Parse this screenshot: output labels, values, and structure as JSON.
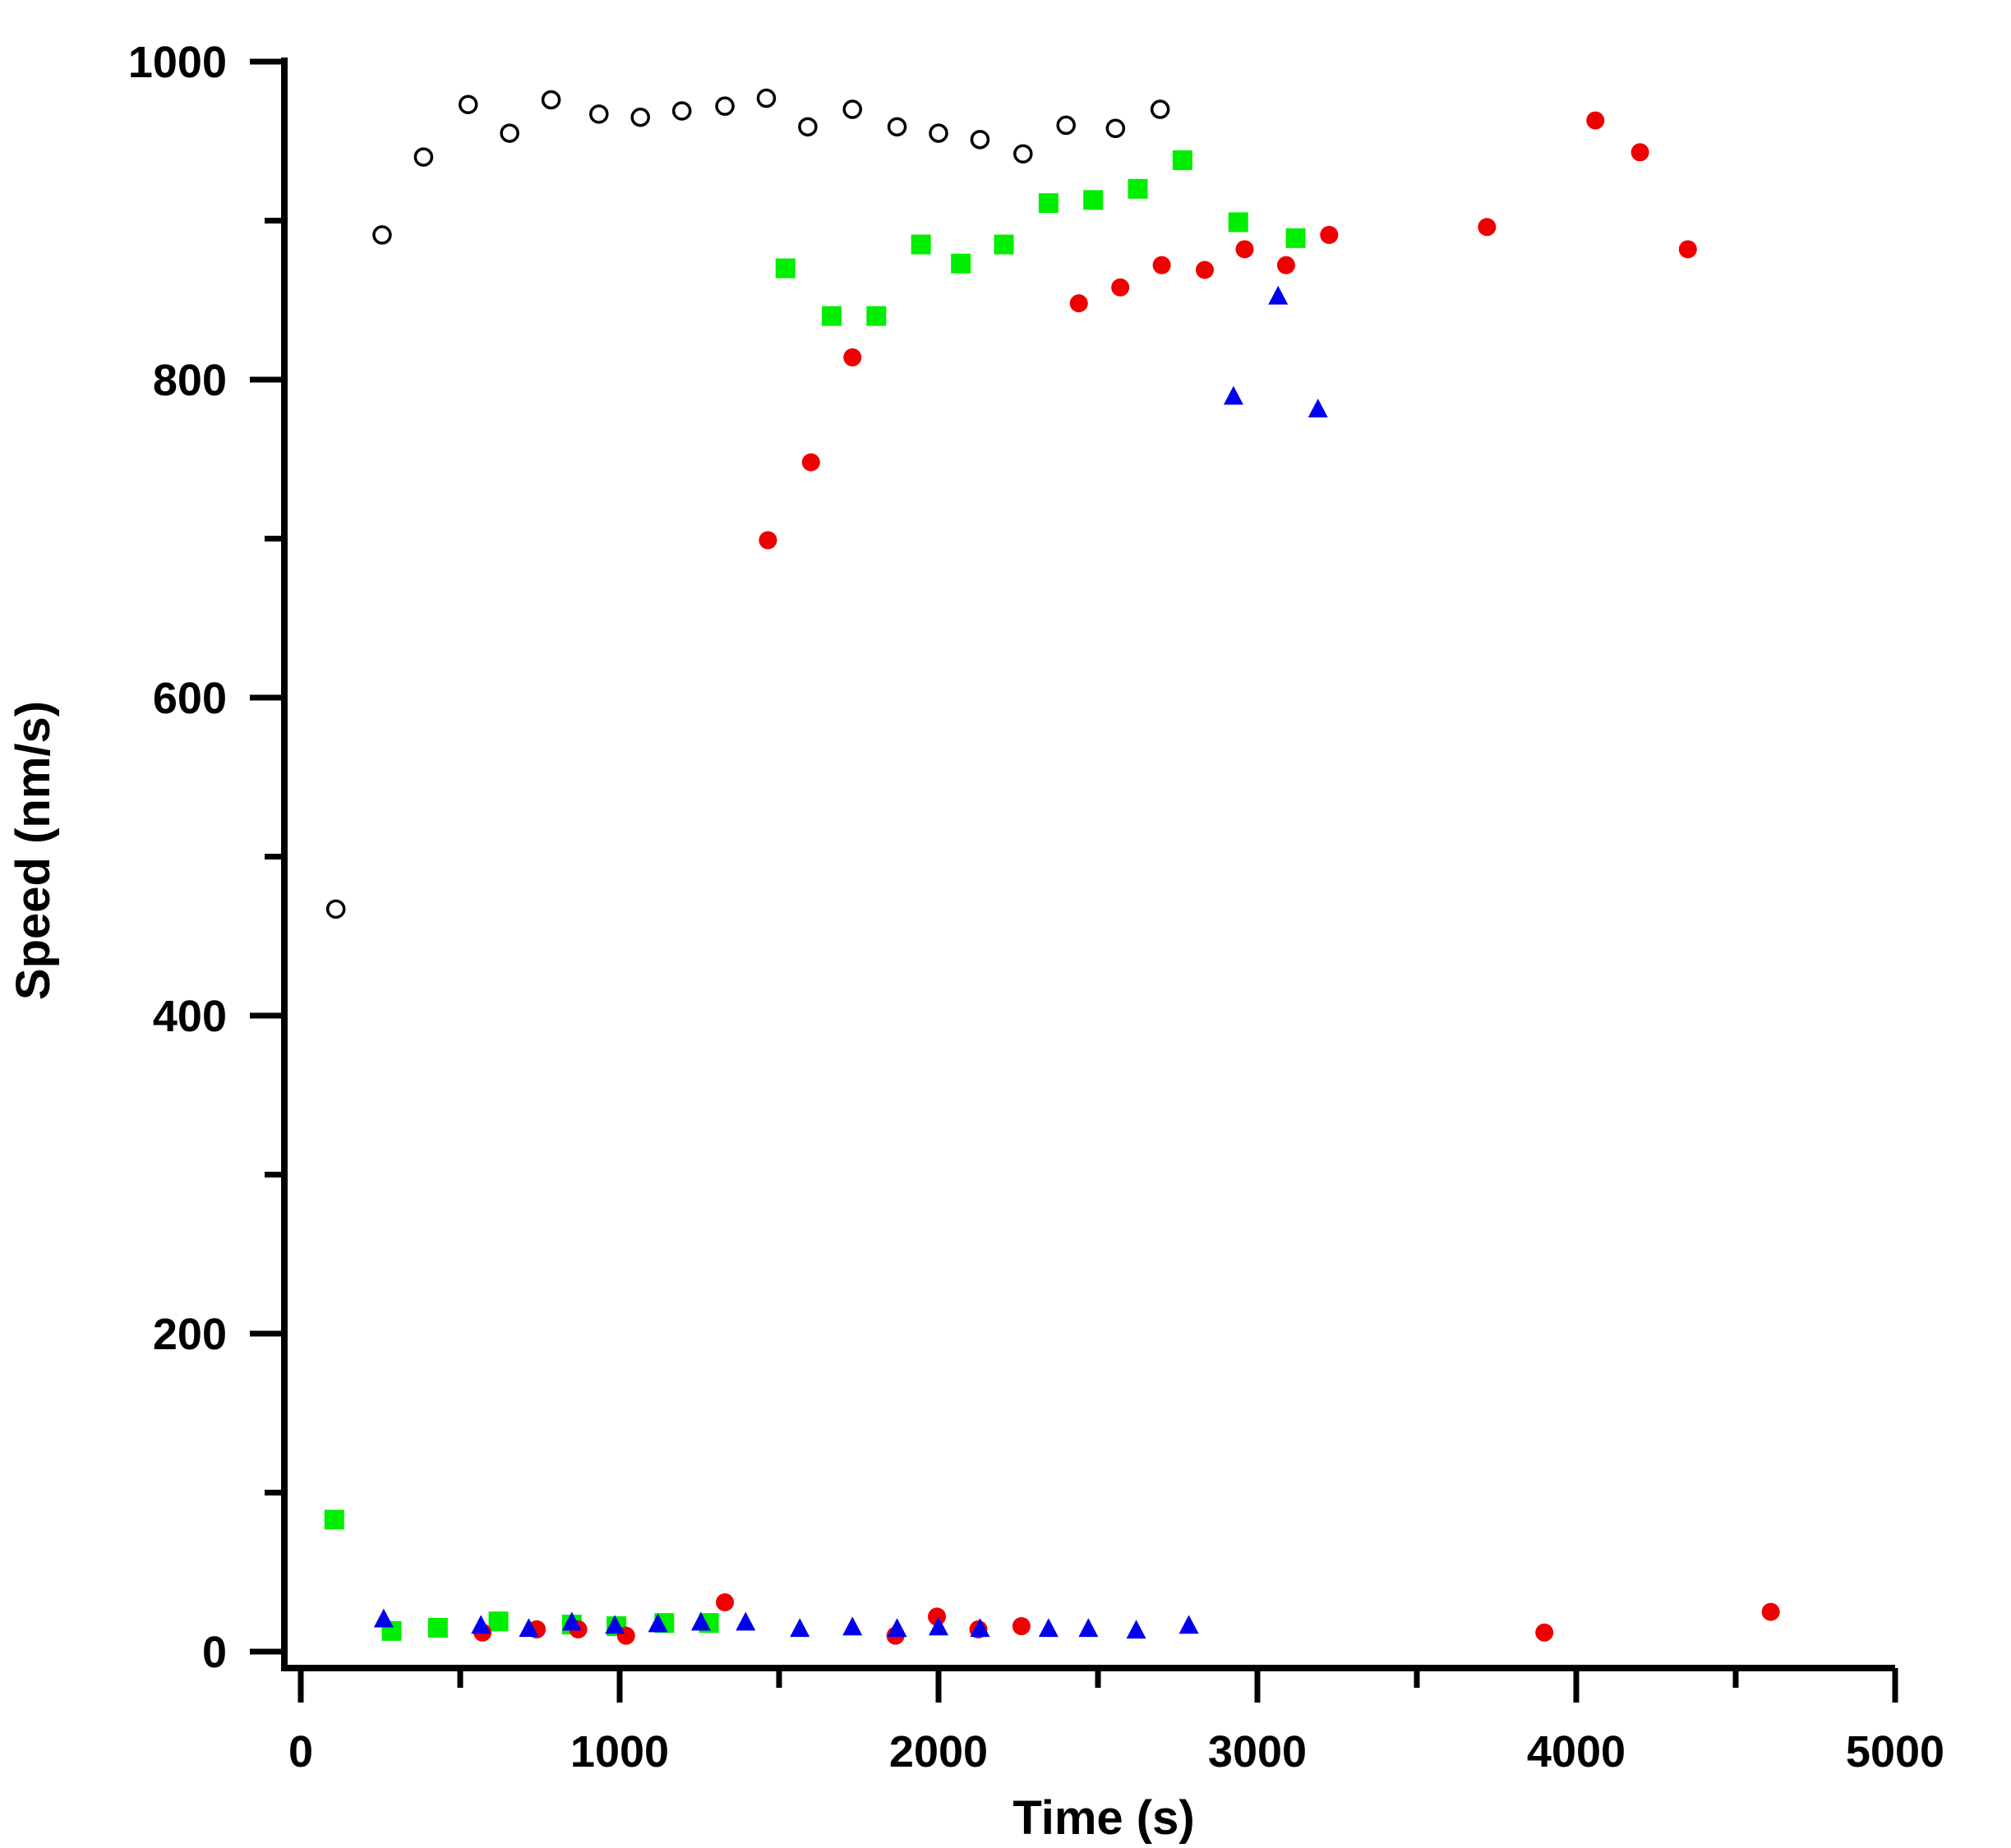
{
  "chart_data": {
    "type": "scatter",
    "xlabel": "Time (s)",
    "ylabel": "Speed (nm/s)",
    "xlim": [
      -50,
      5000
    ],
    "ylim": [
      -10,
      1000
    ],
    "x_ticks": [
      0,
      1000,
      2000,
      3000,
      4000,
      5000
    ],
    "x_minor_ticks": [
      500,
      1500,
      2500,
      3500,
      4500
    ],
    "y_ticks": [
      0,
      200,
      400,
      600,
      800,
      1000
    ],
    "y_minor_ticks": [
      100,
      300,
      500,
      700,
      900
    ],
    "grid": false,
    "series": [
      {
        "marker": "open-circle",
        "color": "#000000",
        "points": [
          [
            110,
            467
          ],
          [
            255,
            891
          ],
          [
            385,
            940
          ],
          [
            525,
            973
          ],
          [
            655,
            955
          ],
          [
            785,
            976
          ],
          [
            935,
            967
          ],
          [
            1065,
            965
          ],
          [
            1195,
            969
          ],
          [
            1330,
            972
          ],
          [
            1460,
            977
          ],
          [
            1590,
            959
          ],
          [
            1730,
            970
          ],
          [
            1870,
            959
          ],
          [
            2000,
            955
          ],
          [
            2130,
            951
          ],
          [
            2265,
            942
          ],
          [
            2400,
            960
          ],
          [
            2555,
            958
          ],
          [
            2695,
            970
          ]
        ]
      },
      {
        "marker": "filled-square",
        "color": "#00ee00",
        "points": [
          [
            105,
            83
          ],
          [
            285,
            13
          ],
          [
            430,
            15
          ],
          [
            620,
            19
          ],
          [
            850,
            17
          ],
          [
            990,
            16
          ],
          [
            1140,
            18
          ],
          [
            1280,
            18
          ],
          [
            1520,
            870
          ],
          [
            1665,
            840
          ],
          [
            1805,
            840
          ],
          [
            1945,
            885
          ],
          [
            2070,
            873
          ],
          [
            2205,
            885
          ],
          [
            2345,
            911
          ],
          [
            2485,
            913
          ],
          [
            2625,
            920
          ],
          [
            2765,
            938
          ],
          [
            2940,
            899
          ],
          [
            3120,
            889
          ]
        ]
      },
      {
        "marker": "filled-circle",
        "color": "#ee0000",
        "points": [
          [
            570,
            12
          ],
          [
            740,
            14
          ],
          [
            870,
            14
          ],
          [
            1020,
            10
          ],
          [
            1330,
            31
          ],
          [
            1465,
            699
          ],
          [
            1600,
            748
          ],
          [
            1730,
            814
          ],
          [
            1865,
            10
          ],
          [
            1995,
            22
          ],
          [
            2125,
            14
          ],
          [
            2260,
            16
          ],
          [
            2440,
            848
          ],
          [
            2570,
            858
          ],
          [
            2700,
            872
          ],
          [
            2835,
            869
          ],
          [
            2960,
            882
          ],
          [
            3090,
            872
          ],
          [
            3225,
            891
          ],
          [
            3720,
            896
          ],
          [
            3900,
            12
          ],
          [
            4060,
            963
          ],
          [
            4200,
            943
          ],
          [
            4350,
            882
          ],
          [
            4610,
            25
          ]
        ]
      },
      {
        "marker": "filled-triangle",
        "color": "#0000ee",
        "points": [
          [
            260,
            20
          ],
          [
            565,
            16
          ],
          [
            715,
            14
          ],
          [
            850,
            18
          ],
          [
            985,
            16
          ],
          [
            1120,
            17
          ],
          [
            1255,
            18
          ],
          [
            1395,
            18
          ],
          [
            1565,
            14
          ],
          [
            1730,
            15
          ],
          [
            1870,
            14
          ],
          [
            2000,
            15
          ],
          [
            2130,
            14
          ],
          [
            2345,
            14
          ],
          [
            2470,
            14
          ],
          [
            2620,
            13
          ],
          [
            2785,
            16
          ],
          [
            2925,
            789
          ],
          [
            3065,
            852
          ],
          [
            3190,
            781
          ]
        ]
      }
    ]
  }
}
